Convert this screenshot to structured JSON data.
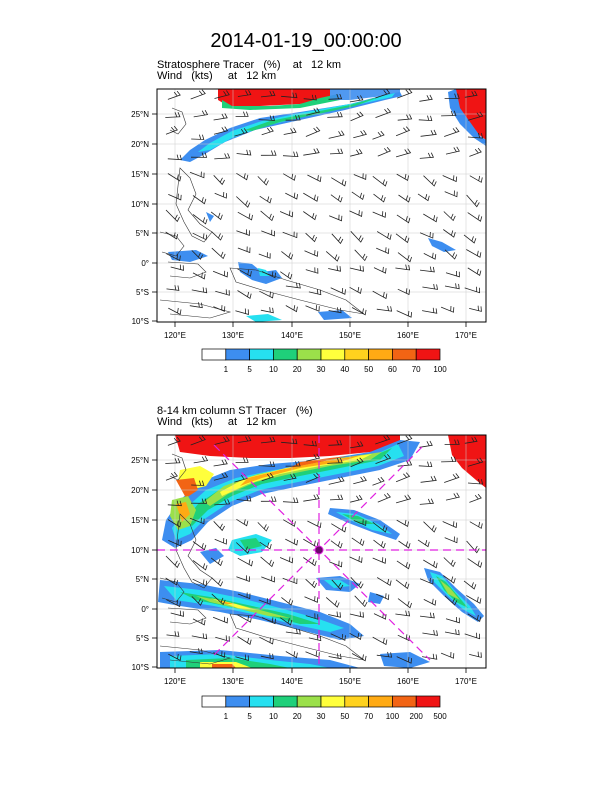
{
  "title": "2014-01-19_00:00:00",
  "panels": [
    {
      "label_line1": "Stratosphere Tracer   (%)    at   12 km",
      "label_line2": "Wind   (kts)     at   12 km",
      "lat_ticks": [
        "25°N",
        "20°N",
        "15°N",
        "10°N",
        "5°N",
        "0°",
        "5°S",
        "10°S"
      ],
      "lon_ticks": [
        "120°E",
        "130°E",
        "140°E",
        "150°E",
        "160°E",
        "170°E"
      ],
      "colorbar_labels": [
        "1",
        "5",
        "10",
        "20",
        "30",
        "40",
        "50",
        "60",
        "70",
        "100"
      ],
      "colorbar_colors": [
        "#ffffff",
        "#3d8ef0",
        "#26e0f0",
        "#1fd07a",
        "#9be04a",
        "#ffff3c",
        "#ffd21e",
        "#ffaa14",
        "#f26414",
        "#f01414"
      ]
    },
    {
      "label_line1": "8-14 km column ST Tracer   (%)",
      "label_line2": "Wind   (kts)     at   12 km",
      "lat_ticks": [
        "25°N",
        "20°N",
        "15°N",
        "10°N",
        "5°N",
        "0°",
        "5°S",
        "10°S"
      ],
      "lon_ticks": [
        "120°E",
        "130°E",
        "140°E",
        "150°E",
        "160°E",
        "170°E"
      ],
      "colorbar_labels": [
        "1",
        "5",
        "10",
        "20",
        "30",
        "50",
        "70",
        "100",
        "200",
        "500"
      ],
      "colorbar_colors": [
        "#ffffff",
        "#3d8ef0",
        "#26e0f0",
        "#1fd07a",
        "#9be04a",
        "#ffff3c",
        "#ffd21e",
        "#ffaa14",
        "#f26414",
        "#f01414"
      ]
    }
  ]
}
